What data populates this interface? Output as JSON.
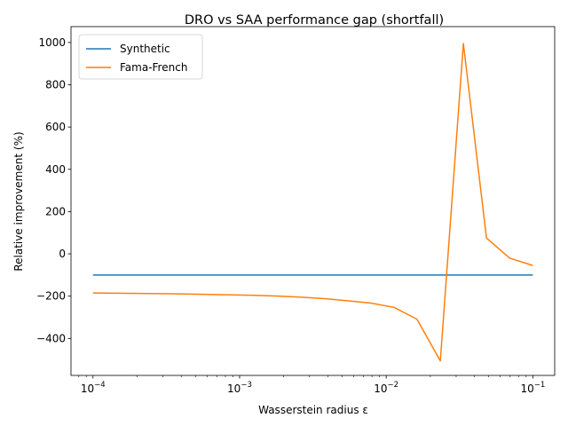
{
  "chart_data": {
    "type": "line",
    "title": "DRO vs SAA performance gap (shortfall)",
    "xlabel": "Wasserstein radius ε",
    "ylabel": "Relative improvement (%)",
    "xscale": "log",
    "xlim": [
      7.08e-05,
      0.141
    ],
    "ylim": [
      -575,
      1075
    ],
    "x_ticks": [
      {
        "value": 0.0001,
        "base": "10",
        "exp": "−4"
      },
      {
        "value": 0.001,
        "base": "10",
        "exp": "−3"
      },
      {
        "value": 0.01,
        "base": "10",
        "exp": "−2"
      },
      {
        "value": 0.1,
        "base": "10",
        "exp": "−1"
      }
    ],
    "y_ticks": [
      {
        "value": -400,
        "label": "−400"
      },
      {
        "value": -200,
        "label": "−200"
      },
      {
        "value": 0,
        "label": "0"
      },
      {
        "value": 200,
        "label": "200"
      },
      {
        "value": 400,
        "label": "400"
      },
      {
        "value": 600,
        "label": "600"
      },
      {
        "value": 800,
        "label": "800"
      },
      {
        "value": 1000,
        "label": "1000"
      }
    ],
    "grid": false,
    "legend_position": "top-left",
    "x": [
      0.0001,
      0.000143,
      0.000207,
      0.000298,
      0.000428,
      0.000616,
      0.000886,
      0.00127,
      0.00183,
      0.00264,
      0.00379,
      0.00546,
      0.00785,
      0.0113,
      0.0162,
      0.0234,
      0.0336,
      0.0483,
      0.0695,
      0.1
    ],
    "series": [
      {
        "name": "Synthetic",
        "color": "#1f77b4",
        "values": [
          -100,
          -100,
          -100,
          -100,
          -100,
          -100,
          -100,
          -100,
          -100,
          -100,
          -100,
          -100,
          -100,
          -100,
          -100,
          -100,
          -100,
          -100,
          -100,
          -100
        ]
      },
      {
        "name": "Fama-French",
        "color": "#ff7f0e",
        "values": [
          -185,
          -186,
          -187,
          -188,
          -190,
          -192,
          -194,
          -196,
          -200,
          -205,
          -212,
          -222,
          -233,
          -253,
          -309,
          -506,
          995,
          75,
          -20,
          -55
        ]
      }
    ]
  }
}
